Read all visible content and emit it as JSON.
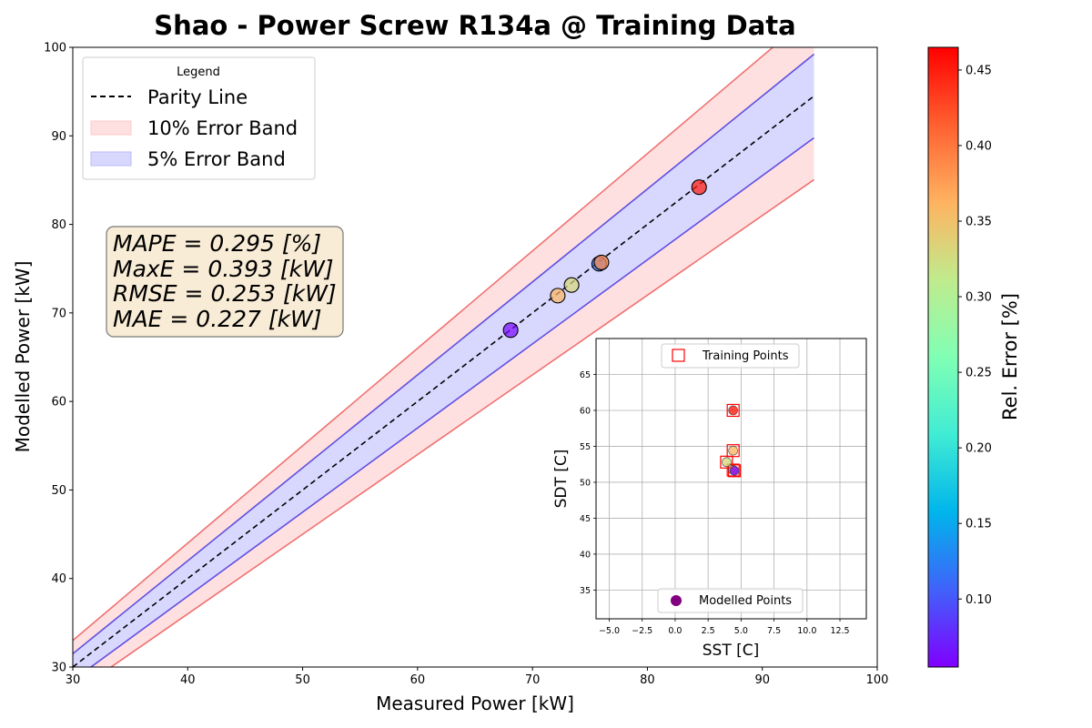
{
  "chart_data": [
    {
      "type": "scatter",
      "title": "Shao - Power Screw R134a @ Training Data",
      "xlabel": "Measured Power [kW]",
      "ylabel": "Modelled Power [kW]",
      "xlim": [
        30,
        100
      ],
      "ylim": [
        30,
        100
      ],
      "xticks": [
        30,
        40,
        50,
        60,
        70,
        80,
        90,
        100
      ],
      "yticks": [
        30,
        40,
        50,
        60,
        70,
        80,
        90,
        100
      ],
      "band_x_range": [
        30,
        94.5
      ],
      "legend": {
        "title": "Legend",
        "placement": "top-left",
        "entries": [
          "Parity Line",
          "10% Error Band",
          "5% Error Band"
        ]
      },
      "stats": [
        "MAPE = 0.295 [%]",
        "MaxE = 0.393 [kW]",
        "RMSE = 0.253 [kW]",
        "MAE = 0.227 [kW]"
      ],
      "points": [
        {
          "x": 68.1,
          "y": 68.05,
          "rel_error": 0.06
        },
        {
          "x": 72.2,
          "y": 71.95,
          "rel_error": 0.36
        },
        {
          "x": 73.4,
          "y": 73.15,
          "rel_error": 0.33
        },
        {
          "x": 75.8,
          "y": 75.55,
          "rel_error": 0.12
        },
        {
          "x": 76.0,
          "y": 75.7,
          "rel_error": 0.39
        },
        {
          "x": 84.5,
          "y": 84.2,
          "rel_error": 0.45
        }
      ],
      "colors": {
        "band10_fill": "#ffe0e0",
        "band10_line": "#f07070",
        "band5_fill": "#d8d8ff",
        "band5_line": "#6050e0",
        "parity": "#000000"
      },
      "grid": false
    },
    {
      "type": "scatter",
      "xlabel": "SST [C]",
      "ylabel": "SDT [C]",
      "xlim": [
        -6,
        14.5
      ],
      "ylim": [
        31,
        70
      ],
      "xticks": [
        -5.0,
        -2.5,
        0.0,
        2.5,
        5.0,
        7.5,
        10.0,
        12.5
      ],
      "xtick_labels": [
        "−5.0",
        "−2.5",
        "0.0",
        "2.5",
        "5.0",
        "7.5",
        "10.0",
        "12.5"
      ],
      "yticks": [
        35,
        40,
        45,
        50,
        55,
        60,
        65
      ],
      "grid": true,
      "legends": [
        {
          "label": "Training Points",
          "placement": "top-center",
          "marker": "open-square",
          "color": "#ff0000"
        },
        {
          "label": "Modelled Points",
          "placement": "bottom-center",
          "marker": "circle",
          "color": "#800080"
        }
      ],
      "training_points": [
        {
          "x": 4.4,
          "y": 60.0
        },
        {
          "x": 4.4,
          "y": 54.4
        },
        {
          "x": 3.9,
          "y": 52.8
        },
        {
          "x": 4.4,
          "y": 51.7
        },
        {
          "x": 4.5,
          "y": 51.6
        }
      ],
      "modelled_points": [
        {
          "x": 4.4,
          "y": 60.0,
          "rel_error": 0.45
        },
        {
          "x": 4.4,
          "y": 54.4,
          "rel_error": 0.36
        },
        {
          "x": 3.9,
          "y": 52.8,
          "rel_error": 0.33
        },
        {
          "x": 4.4,
          "y": 51.7,
          "rel_error": 0.39
        },
        {
          "x": 4.5,
          "y": 51.6,
          "rel_error": 0.06
        }
      ]
    },
    {
      "type": "heatmap",
      "label": "Rel. Error [%]",
      "colormap": "rainbow",
      "range": [
        0.055,
        0.465
      ],
      "ticks": [
        0.1,
        0.15,
        0.2,
        0.25,
        0.3,
        0.35,
        0.4,
        0.45
      ],
      "tick_labels": [
        "0.10",
        "0.15",
        "0.20",
        "0.25",
        "0.30",
        "0.35",
        "0.40",
        "0.45"
      ]
    }
  ]
}
